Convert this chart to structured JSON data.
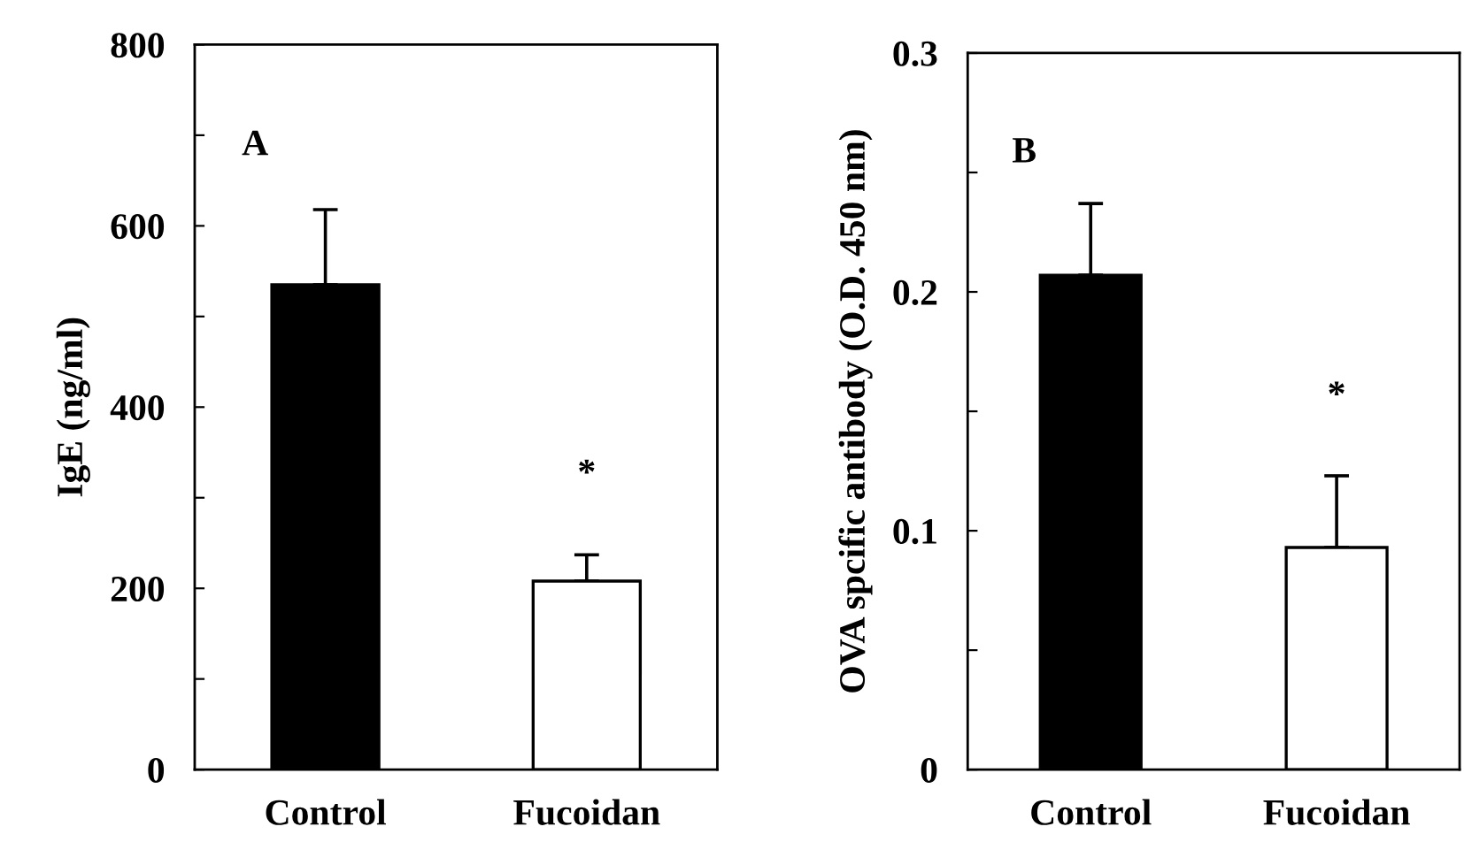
{
  "chart_data": [
    {
      "type": "bar",
      "ylabel": "IgE (ng/ml)",
      "categories": [
        "Control",
        "Fucoidan"
      ],
      "values": [
        535,
        208
      ],
      "colors": [
        "#000000",
        "#ffffff"
      ],
      "errors": [
        [
          535,
          618
        ],
        [
          208,
          237
        ]
      ],
      "ylim": [
        0,
        800
      ],
      "yticks": [
        0,
        {
          "value": 100,
          "label": null
        },
        200,
        {
          "value": 300,
          "label": null
        },
        400,
        {
          "value": 500,
          "label": null
        },
        600,
        {
          "value": 700,
          "label": null
        },
        800
      ],
      "grid": false,
      "legend": false,
      "annotations": [
        "A",
        "*"
      ]
    },
    {
      "type": "bar",
      "ylabel": "OVA spcific antibody (O.D. 450 nm)",
      "categories": [
        "Control",
        "Fucoidan"
      ],
      "values": [
        0.207,
        0.093
      ],
      "colors": [
        "#000000",
        "#ffffff"
      ],
      "errors": [
        [
          0.207,
          0.237
        ],
        [
          0.093,
          0.123
        ]
      ],
      "ylim": [
        0,
        0.3
      ],
      "yticks": [
        0,
        {
          "value": 0.05,
          "label": null
        },
        0.1,
        {
          "value": 0.15,
          "label": null
        },
        0.2,
        {
          "value": 0.25,
          "label": null
        },
        0.3
      ],
      "grid": false,
      "legend": false,
      "annotations": [
        "B",
        "*"
      ]
    }
  ]
}
